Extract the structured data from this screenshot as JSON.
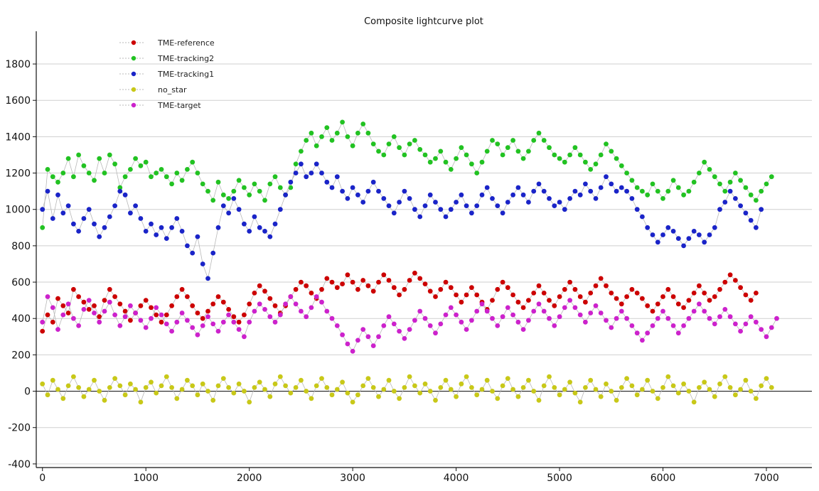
{
  "chart_data": {
    "type": "scatter",
    "title": "Composite lightcurve plot",
    "xlabel": "",
    "ylabel": "",
    "xlim": [
      -60,
      7440
    ],
    "ylim": [
      -420,
      1980
    ],
    "x_ticks": [
      0,
      1000,
      2000,
      3000,
      4000,
      5000,
      6000,
      7000
    ],
    "y_ticks": [
      -400,
      -200,
      0,
      200,
      400,
      600,
      800,
      1000,
      1200,
      1400,
      1600,
      1800
    ],
    "grid": "horizontal",
    "zero_line": true,
    "legend_position": "top-left",
    "x_step": 50,
    "series": [
      {
        "name": "TME-reference",
        "color": "#cc0000",
        "x_start": 0,
        "values": [
          330,
          420,
          380,
          510,
          470,
          430,
          560,
          520,
          490,
          450,
          470,
          410,
          500,
          560,
          520,
          480,
          440,
          390,
          430,
          470,
          500,
          460,
          420,
          380,
          420,
          470,
          520,
          560,
          520,
          470,
          430,
          400,
          440,
          480,
          520,
          490,
          450,
          410,
          380,
          420,
          480,
          540,
          580,
          550,
          510,
          470,
          430,
          470,
          520,
          560,
          600,
          580,
          540,
          510,
          560,
          620,
          600,
          570,
          590,
          640,
          600,
          560,
          610,
          580,
          550,
          600,
          640,
          610,
          570,
          530,
          560,
          610,
          650,
          620,
          590,
          550,
          520,
          560,
          600,
          570,
          530,
          490,
          530,
          570,
          530,
          490,
          450,
          500,
          560,
          600,
          570,
          530,
          490,
          460,
          500,
          540,
          580,
          540,
          500,
          470,
          520,
          560,
          600,
          560,
          520,
          490,
          540,
          580,
          620,
          580,
          540,
          510,
          480,
          520,
          560,
          540,
          510,
          470,
          440,
          480,
          520,
          560,
          520,
          480,
          460,
          500,
          540,
          580,
          540,
          500,
          520,
          560,
          600,
          640,
          610,
          570,
          530,
          500,
          540
        ]
      },
      {
        "name": "TME-tracking2",
        "color": "#22c222",
        "x_start": 0,
        "values": [
          900,
          1220,
          1180,
          1150,
          1200,
          1280,
          1180,
          1300,
          1240,
          1200,
          1160,
          1280,
          1200,
          1300,
          1250,
          1120,
          1180,
          1220,
          1280,
          1240,
          1260,
          1180,
          1200,
          1220,
          1180,
          1140,
          1200,
          1160,
          1220,
          1260,
          1200,
          1140,
          1100,
          1050,
          1150,
          1080,
          1060,
          1100,
          1160,
          1120,
          1080,
          1140,
          1100,
          1050,
          1140,
          1180,
          1120,
          1080,
          1120,
          1250,
          1320,
          1380,
          1420,
          1350,
          1400,
          1450,
          1380,
          1420,
          1480,
          1400,
          1350,
          1420,
          1470,
          1420,
          1360,
          1320,
          1300,
          1360,
          1400,
          1340,
          1300,
          1360,
          1380,
          1330,
          1300,
          1260,
          1280,
          1320,
          1260,
          1220,
          1280,
          1340,
          1300,
          1250,
          1200,
          1260,
          1320,
          1380,
          1360,
          1300,
          1340,
          1380,
          1320,
          1280,
          1320,
          1380,
          1420,
          1380,
          1340,
          1300,
          1280,
          1260,
          1300,
          1340,
          1300,
          1260,
          1220,
          1250,
          1300,
          1360,
          1320,
          1280,
          1240,
          1200,
          1160,
          1120,
          1100,
          1080,
          1140,
          1100,
          1060,
          1100,
          1160,
          1120,
          1080,
          1100,
          1150,
          1200,
          1260,
          1220,
          1180,
          1140,
          1100,
          1150,
          1200,
          1160,
          1120,
          1080,
          1050,
          1100,
          1140,
          1180
        ]
      },
      {
        "name": "TME-tracking1",
        "color": "#1a24c8",
        "x_start": 0,
        "values": [
          1000,
          1100,
          950,
          1080,
          980,
          1020,
          920,
          880,
          950,
          1000,
          920,
          850,
          900,
          960,
          1020,
          1100,
          1080,
          980,
          1020,
          950,
          880,
          920,
          860,
          900,
          840,
          900,
          950,
          880,
          800,
          760,
          850,
          700,
          620,
          760,
          900,
          1020,
          980,
          1060,
          1000,
          920,
          880,
          960,
          900,
          880,
          850,
          920,
          1000,
          1080,
          1150,
          1200,
          1250,
          1180,
          1200,
          1250,
          1200,
          1150,
          1120,
          1180,
          1100,
          1060,
          1120,
          1080,
          1040,
          1100,
          1150,
          1100,
          1060,
          1020,
          980,
          1040,
          1100,
          1060,
          1000,
          960,
          1020,
          1080,
          1040,
          1000,
          960,
          1000,
          1040,
          1080,
          1020,
          980,
          1020,
          1080,
          1120,
          1060,
          1020,
          980,
          1040,
          1080,
          1120,
          1080,
          1040,
          1100,
          1140,
          1100,
          1060,
          1020,
          1040,
          1000,
          1060,
          1100,
          1080,
          1140,
          1100,
          1060,
          1120,
          1180,
          1140,
          1100,
          1120,
          1100,
          1060,
          1000,
          960,
          900,
          860,
          820,
          860,
          900,
          880,
          840,
          800,
          840,
          880,
          860,
          820,
          860,
          900,
          1000,
          1040,
          1100,
          1060,
          1020,
          980,
          940,
          900,
          1000
        ]
      },
      {
        "name": "no_star",
        "color": "#c8c818",
        "x_start": 0,
        "values": [
          40,
          -20,
          60,
          10,
          -40,
          30,
          80,
          20,
          -30,
          10,
          60,
          0,
          -50,
          20,
          70,
          30,
          -20,
          40,
          10,
          -60,
          20,
          50,
          -10,
          30,
          80,
          20,
          -40,
          10,
          60,
          30,
          -20,
          40,
          0,
          -50,
          30,
          70,
          20,
          -10,
          40,
          0,
          -60,
          20,
          50,
          10,
          -30,
          40,
          80,
          30,
          -10,
          20,
          60,
          0,
          -40,
          30,
          70,
          20,
          -20,
          10,
          50,
          -10,
          -60,
          -20,
          30,
          70,
          20,
          -30,
          10,
          60,
          0,
          -40,
          20,
          80,
          30,
          -10,
          40,
          0,
          -50,
          20,
          60,
          10,
          -30,
          40,
          80,
          20,
          -20,
          10,
          60,
          0,
          -40,
          30,
          70,
          10,
          -30,
          20,
          60,
          0,
          -50,
          30,
          80,
          20,
          -20,
          10,
          50,
          -10,
          -60,
          20,
          60,
          10,
          -30,
          40,
          0,
          -50,
          20,
          70,
          30,
          -20,
          10,
          60,
          0,
          -40,
          20,
          80,
          30,
          -10,
          40,
          0,
          -60,
          20,
          50,
          10,
          -30,
          40,
          80,
          20,
          -20,
          10,
          60,
          0,
          -40,
          30,
          70,
          20
        ]
      },
      {
        "name": "TME-target",
        "color": "#cc22cc",
        "x_start": 0,
        "values": [
          380,
          520,
          460,
          340,
          420,
          480,
          400,
          360,
          450,
          500,
          430,
          380,
          440,
          490,
          420,
          360,
          410,
          470,
          430,
          390,
          350,
          400,
          460,
          420,
          370,
          330,
          380,
          430,
          390,
          350,
          310,
          360,
          410,
          370,
          330,
          380,
          420,
          380,
          340,
          300,
          380,
          440,
          480,
          450,
          410,
          380,
          420,
          480,
          520,
          480,
          440,
          410,
          460,
          520,
          490,
          440,
          400,
          360,
          310,
          260,
          220,
          280,
          340,
          300,
          250,
          300,
          360,
          410,
          370,
          330,
          290,
          340,
          390,
          440,
          400,
          360,
          320,
          370,
          420,
          460,
          420,
          380,
          340,
          390,
          440,
          480,
          440,
          400,
          360,
          410,
          460,
          420,
          380,
          340,
          390,
          440,
          480,
          440,
          400,
          360,
          410,
          460,
          500,
          460,
          420,
          380,
          430,
          470,
          430,
          390,
          350,
          400,
          440,
          400,
          360,
          320,
          280,
          320,
          360,
          400,
          440,
          400,
          360,
          320,
          360,
          400,
          440,
          480,
          440,
          400,
          370,
          410,
          450,
          410,
          370,
          330,
          370,
          410,
          380,
          340,
          300,
          350,
          400
        ]
      }
    ]
  }
}
